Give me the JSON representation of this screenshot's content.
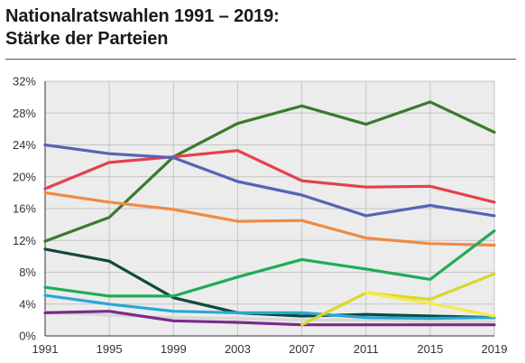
{
  "chart_data": {
    "type": "line",
    "title": "Nationalratswahlen 1991 – 2019:",
    "subtitle": "Stärke der Parteien",
    "xlabel": "",
    "ylabel": "",
    "x": [
      1991,
      1995,
      1999,
      2003,
      2007,
      2011,
      2015,
      2019
    ],
    "x_tick_labels": [
      "1991",
      "1995",
      "1999",
      "2003",
      "2007",
      "2011",
      "2015",
      "2019"
    ],
    "ylim": [
      0,
      32
    ],
    "y_ticks": [
      0,
      4,
      8,
      12,
      16,
      20,
      24,
      28,
      32
    ],
    "y_tick_labels": [
      "0%",
      "4%",
      "8%",
      "12%",
      "16%",
      "20%",
      "24%",
      "28%",
      "32%"
    ],
    "grid": true,
    "plot_background": "#ececec",
    "grid_color": "#c4c4c4",
    "series": [
      {
        "color": "#d7d7d7",
        "values": [
          3.0,
          2.6,
          2.3,
          2.2,
          2.0,
          2.0,
          1.8,
          1.8
        ]
      },
      {
        "color": "#3a7a2c",
        "values": [
          11.9,
          14.9,
          22.5,
          26.7,
          28.9,
          26.6,
          29.4,
          25.6
        ]
      },
      {
        "color": "#e5404c",
        "values": [
          18.5,
          21.8,
          22.5,
          23.3,
          19.5,
          18.7,
          18.8,
          16.8
        ]
      },
      {
        "color": "#5564b4",
        "values": [
          24.0,
          22.9,
          22.4,
          19.4,
          17.7,
          15.1,
          16.4,
          15.1
        ]
      },
      {
        "color": "#f08a43",
        "values": [
          18.0,
          16.8,
          15.9,
          14.4,
          14.5,
          12.3,
          11.6,
          11.4
        ]
      },
      {
        "color": "#0e4a3c",
        "values": [
          10.9,
          9.4,
          4.8,
          2.9,
          2.5,
          2.7,
          2.5,
          2.3
        ]
      },
      {
        "color": "#1fac55",
        "values": [
          6.1,
          5.0,
          5.0,
          7.4,
          9.6,
          8.4,
          7.1,
          13.2
        ]
      },
      {
        "color": "#27a8d9",
        "values": [
          5.1,
          4.0,
          3.1,
          2.9,
          2.9,
          2.3,
          2.2,
          2.3
        ]
      },
      {
        "color": "#7b2a8c",
        "values": [
          2.9,
          3.1,
          1.9,
          1.7,
          1.4,
          1.4,
          1.4,
          1.4
        ]
      },
      {
        "color": "#d9d72a",
        "x": [
          2007,
          2011,
          2015,
          2019
        ],
        "values": [
          1.4,
          5.4,
          4.6,
          7.8
        ]
      },
      {
        "color": "#f5ea4a",
        "x": [
          2011,
          2015,
          2019
        ],
        "values": [
          5.4,
          4.1,
          2.5
        ]
      }
    ]
  }
}
